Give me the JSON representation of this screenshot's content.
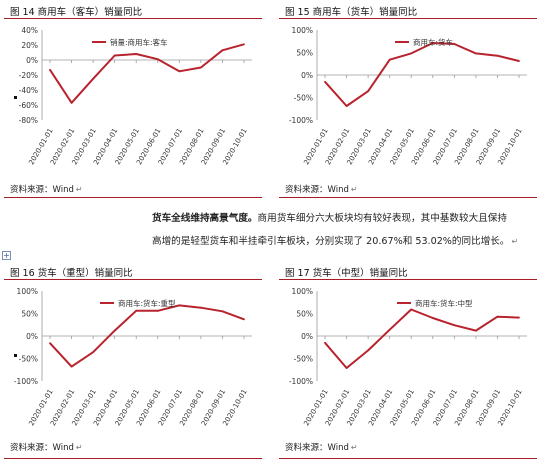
{
  "figures": [
    {
      "title": "图 14 商用车（客车）销量同比",
      "source": "资料来源：Wind",
      "chart_data": {
        "type": "line",
        "x": [
          "2020-01-01",
          "2020-02-01",
          "2020-03-01",
          "2020-04-01",
          "2020-05-01",
          "2020-06-01",
          "2020-07-01",
          "2020-08-01",
          "2020-09-01",
          "2020-10-01"
        ],
        "series": [
          {
            "name": "销量:商用车:客车",
            "values": [
              -13,
              -57,
              -25,
              6,
              8,
              1,
              -15,
              -10,
              13,
              21
            ]
          }
        ],
        "yticks": [
          "40%",
          "20%",
          "0%",
          "-20%",
          "-40%",
          "-60%",
          "-80%"
        ],
        "ylim": [
          -80,
          40
        ],
        "title": "",
        "xlabel": "",
        "ylabel": "",
        "legend": "top-left",
        "grid": false
      }
    },
    {
      "title": "图 15 商用车（货车）销量同比",
      "source": "资料来源：Wind",
      "chart_data": {
        "type": "line",
        "x": [
          "2020-01-01",
          "2020-02-01",
          "2020-03-01",
          "2020-04-01",
          "2020-05-01",
          "2020-06-01",
          "2020-07-01",
          "2020-08-01",
          "2020-09-01",
          "2020-10-01"
        ],
        "series": [
          {
            "name": "商用车:货车",
            "values": [
              -15,
              -69,
              -36,
              34,
              48,
              71,
              69,
              48,
              43,
              31
            ]
          }
        ],
        "yticks": [
          "100%",
          "50%",
          "0%",
          "-50%",
          "-100%"
        ],
        "ylim": [
          -100,
          100
        ],
        "title": "",
        "xlabel": "",
        "ylabel": "",
        "legend": "top-center",
        "grid": false
      }
    },
    {
      "title": "图 16 货车（重型）销量同比",
      "source": "资料来源：Wind",
      "chart_data": {
        "type": "line",
        "x": [
          "2020-01-01",
          "2020-02-01",
          "2020-03-01",
          "2020-04-01",
          "2020-05-01",
          "2020-06-01",
          "2020-07-01",
          "2020-08-01",
          "2020-09-01",
          "2020-10-01"
        ],
        "series": [
          {
            "name": "商用车:货车:重型",
            "values": [
              -16,
              -68,
              -36,
              12,
              56,
              56,
              68,
              63,
              55,
              37
            ]
          }
        ],
        "yticks": [
          "100%",
          "50%",
          "0%",
          "-50%",
          "-100%"
        ],
        "ylim": [
          -100,
          100
        ],
        "title": "",
        "xlabel": "",
        "ylabel": "",
        "legend": "top-center",
        "grid": false
      }
    },
    {
      "title": "图 17 货车（中型）销量同比",
      "source": "资料来源：Wind",
      "chart_data": {
        "type": "line",
        "x": [
          "2020-01-01",
          "2020-02-01",
          "2020-03-01",
          "2020-04-01",
          "2020-05-01",
          "2020-06-01",
          "2020-07-01",
          "2020-08-01",
          "2020-09-01",
          "2020-10-01"
        ],
        "series": [
          {
            "name": "商用车:货车:中型",
            "values": [
              -15,
              -71,
              -32,
              14,
              59,
              40,
              24,
              12,
              43,
              41
            ]
          }
        ],
        "yticks": [
          "100%",
          "50%",
          "0%",
          "-50%",
          "-100%"
        ],
        "ylim": [
          -100,
          100
        ],
        "title": "",
        "xlabel": "",
        "ylabel": "",
        "legend": "top-center",
        "grid": false
      }
    }
  ],
  "paragraph": {
    "heading": "货车全线维持高景气度。",
    "line1_rest": "商用货车细分六大板块均有较好表现，其中基数较大且保持",
    "line2": "高增的是轻型货车和半挂牵引车板块，分别实现了 20.67%和 53.02%的同比增长。"
  },
  "colors": {
    "accent": "#a71c26",
    "line": "#b8232d",
    "axis": "#9a9a9a"
  }
}
